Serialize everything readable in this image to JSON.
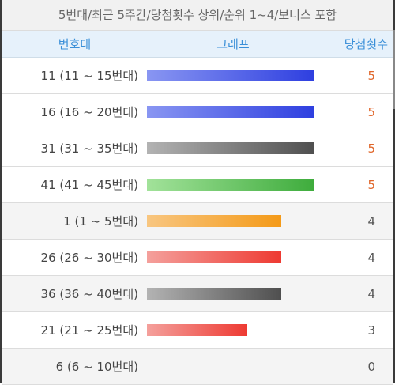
{
  "title": "5번대/최근 5주간/당첨횟수 상위/순위 1~4/보너스 포함",
  "headers": {
    "range": "번호대",
    "graph": "그래프",
    "count": "당첨횟수"
  },
  "max_count": 5,
  "colors": {
    "blue": [
      "#8996f2",
      "#2e3fe0"
    ],
    "gray": [
      "#b3b3b3",
      "#4f4f4f"
    ],
    "green": [
      "#a2e29a",
      "#3eac3c"
    ],
    "orange": [
      "#f8c680",
      "#f49a18"
    ],
    "red": [
      "#f4a09c",
      "#ee3a32"
    ],
    "hot_text": "#e0662a"
  },
  "rows": [
    {
      "label": "11 (11 ~ 15번대)",
      "count": "5",
      "value": 5,
      "color": "blue"
    },
    {
      "label": "16 (16 ~ 20번대)",
      "count": "5",
      "value": 5,
      "color": "blue"
    },
    {
      "label": "31 (31 ~ 35번대)",
      "count": "5",
      "value": 5,
      "color": "gray"
    },
    {
      "label": "41 (41 ~ 45번대)",
      "count": "5",
      "value": 5,
      "color": "green"
    },
    {
      "label": "1 (1 ~ 5번대)",
      "count": "4",
      "value": 4,
      "color": "orange"
    },
    {
      "label": "26 (26 ~ 30번대)",
      "count": "4",
      "value": 4,
      "color": "red"
    },
    {
      "label": "36 (36 ~ 40번대)",
      "count": "4",
      "value": 4,
      "color": "gray"
    },
    {
      "label": "21 (21 ~ 25번대)",
      "count": "3",
      "value": 3,
      "color": "red"
    },
    {
      "label": "6 (6 ~ 10번대)",
      "count": "0",
      "value": 0,
      "color": "gray"
    }
  ]
}
